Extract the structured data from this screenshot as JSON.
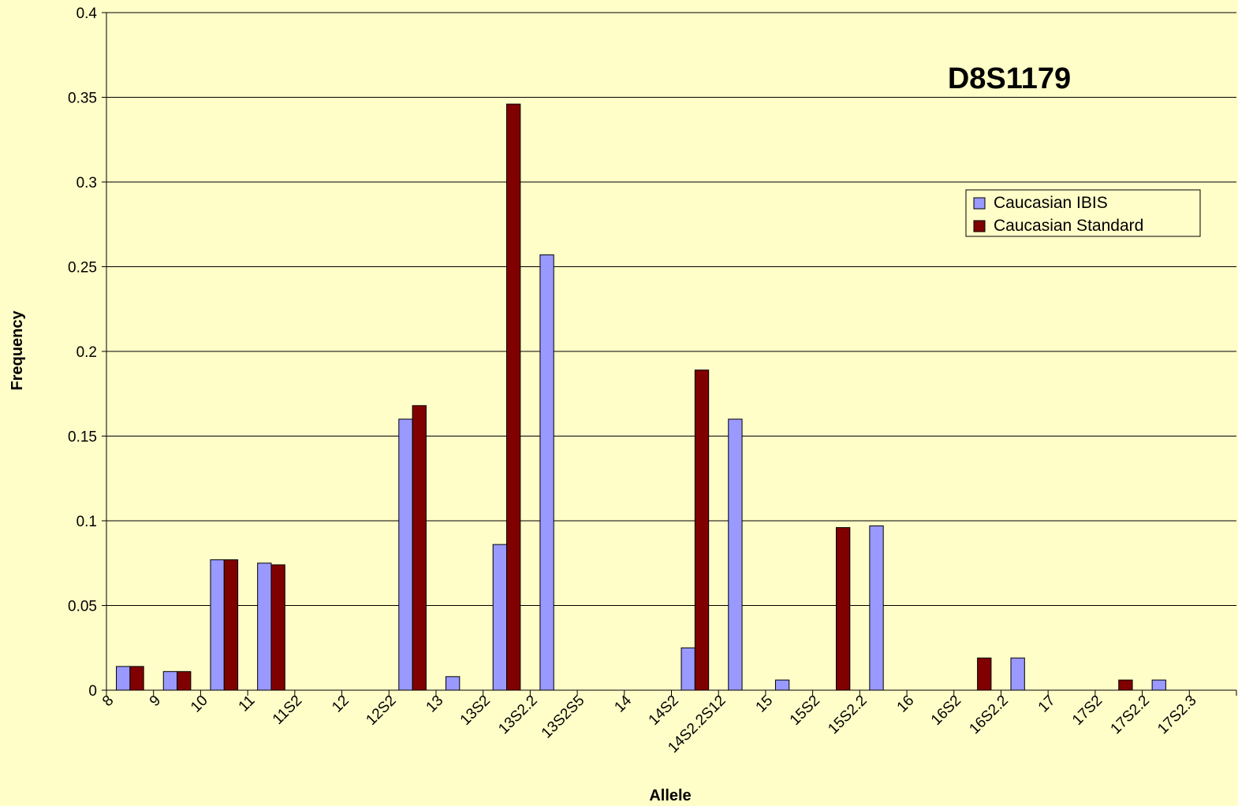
{
  "chart_data": {
    "type": "bar",
    "title": "D8S1179",
    "x_label": "Allele",
    "y_label": "Frequency",
    "categories": [
      "8",
      "9",
      "10",
      "11",
      "11S2",
      "12",
      "12S2",
      "13",
      "13S2",
      "13S2.2",
      "13S2S5",
      "14",
      "14S2",
      "14S2.2S12",
      "15",
      "15S2",
      "15S2.2",
      "16",
      "16S2",
      "16S2.2",
      "17",
      "17S2",
      "17S2.2",
      "17S2.3"
    ],
    "series": [
      {
        "name": "Caucasian IBIS",
        "color": "#9999ff",
        "values": [
          0.014,
          0.011,
          0.077,
          0.075,
          0,
          0,
          0.16,
          0.008,
          0.086,
          0.257,
          0,
          0,
          0.025,
          0.16,
          0.006,
          0,
          0.097,
          0,
          0,
          0.019,
          0,
          0,
          0.006,
          0
        ]
      },
      {
        "name": "Caucasian Standard",
        "color": "#800000",
        "values": [
          0.014,
          0.011,
          0.077,
          0.074,
          0,
          0,
          0.168,
          0,
          0.346,
          0,
          0,
          0,
          0.189,
          0,
          0,
          0.096,
          0,
          0,
          0.019,
          0,
          0,
          0.006,
          0,
          0
        ]
      }
    ],
    "ylim": [
      0,
      0.4
    ],
    "yticks": [
      0,
      0.05,
      0.1,
      0.15,
      0.2,
      0.25,
      0.3,
      0.35,
      0.4
    ],
    "grid": true,
    "legend": "right"
  }
}
